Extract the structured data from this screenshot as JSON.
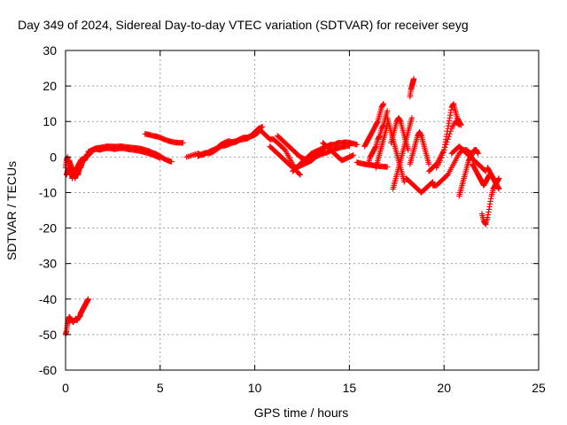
{
  "chart_data": {
    "type": "scatter",
    "title": "Day 349 of 2024, Sidereal Day-to-day VTEC variation (SDTVAR) for receiver seyg",
    "xlabel": "GPS time / hours",
    "ylabel": "SDTVAR / TECUs",
    "xlim": [
      0,
      25
    ],
    "ylim": [
      -60,
      30
    ],
    "xticks": [
      0,
      5,
      10,
      15,
      20,
      25
    ],
    "yticks": [
      -60,
      -50,
      -40,
      -30,
      -20,
      -10,
      0,
      10,
      20,
      30
    ],
    "grid": true,
    "marker": "+",
    "color": "#ff0000",
    "series": [
      {
        "name": "SDTVAR",
        "segments": [
          {
            "x": [
              0.0,
              0.05,
              0.1,
              0.15,
              0.2,
              0.25,
              0.3,
              0.35,
              0.4,
              0.45,
              0.5,
              0.55,
              0.6,
              0.65,
              0.7,
              0.75,
              0.8,
              0.85,
              0.9,
              0.95,
              1.0,
              1.05,
              1.1,
              1.15,
              1.2
            ],
            "y": [
              -50,
              -49,
              -47,
              -46,
              -45,
              -45.5,
              -46,
              -46,
              -46.5,
              -46,
              -46,
              -45.5,
              -46,
              -45.5,
              -45,
              -45,
              -44,
              -43.5,
              -43,
              -42.5,
              -42,
              -41.5,
              -41,
              -40.5,
              -40
            ]
          },
          {
            "x": [
              0.0,
              0.05,
              0.1,
              0.15,
              0.2,
              0.25,
              0.3,
              0.35,
              0.4,
              0.45,
              0.5,
              0.55,
              0.6,
              0.65,
              0.7,
              0.75,
              0.8,
              0.85,
              0.9,
              0.95,
              1.0,
              1.1,
              1.2,
              1.3
            ],
            "y": [
              -3,
              -1,
              0,
              -2,
              -4,
              -5,
              -4,
              -6,
              -5,
              -4,
              -6,
              -5,
              -4,
              -5,
              -4,
              -3,
              -3,
              -2,
              -1,
              -1,
              0,
              0,
              0.5,
              1
            ]
          },
          {
            "x": [
              0.05,
              0.1,
              0.15,
              0.2,
              0.25,
              0.3,
              0.35,
              0.4,
              0.45,
              0.5,
              0.6,
              0.7,
              0.8,
              0.9,
              1.0,
              1.1,
              1.2,
              1.3
            ],
            "y": [
              -5,
              -4,
              -3,
              -1,
              -2,
              -3,
              -4,
              -3,
              -5,
              -4,
              -3,
              -2,
              -1,
              -0.5,
              -1,
              0,
              1,
              1.5
            ]
          },
          {
            "x": [
              1.2,
              1.4,
              1.6,
              1.8,
              2.0,
              2.2,
              2.4,
              2.6,
              2.8,
              3.0,
              3.2,
              3.4,
              3.6,
              3.8,
              4.0,
              4.2,
              4.4,
              4.6,
              4.8,
              5.0,
              5.2,
              5.4,
              5.6
            ],
            "y": [
              1.5,
              2,
              2.5,
              2.6,
              2.8,
              3,
              3,
              2.9,
              3,
              3,
              2.8,
              2.7,
              2.6,
              2.5,
              2.3,
              2,
              1.7,
              1.2,
              0.8,
              0.2,
              -0.5,
              -1,
              -1.3
            ]
          },
          {
            "x": [
              1.4,
              1.6,
              1.8,
              2.0,
              2.2,
              2.4,
              2.6,
              2.8,
              3.0,
              3.2,
              3.4,
              3.6,
              3.8,
              4.0,
              4.2,
              4.4,
              4.6,
              4.8,
              5.0
            ],
            "y": [
              1.8,
              2.2,
              2.0,
              2.3,
              2.5,
              2.4,
              2.2,
              2.4,
              2.5,
              2.3,
              2.1,
              2.0,
              1.8,
              1.6,
              1.3,
              1.0,
              0.6,
              0.2,
              -0.3
            ]
          },
          {
            "x": [
              4.2,
              4.4,
              4.6,
              4.8,
              5.0,
              5.2,
              5.4,
              5.6,
              5.8,
              6.0,
              6.2
            ],
            "y": [
              6.5,
              6.3,
              6.0,
              5.8,
              5.5,
              5.0,
              4.6,
              4.3,
              4.1,
              4.0,
              4.0
            ]
          },
          {
            "x": [
              6.4,
              6.7,
              7.0,
              7.2,
              7.4,
              7.6,
              7.8,
              8.0,
              8.2,
              8.4,
              8.6,
              8.8,
              9.0,
              9.2,
              9.4,
              9.6,
              9.8,
              10.0,
              10.2,
              10.4
            ],
            "y": [
              0,
              0.5,
              1,
              0.5,
              1,
              1.5,
              2,
              2.5,
              3.5,
              4,
              4.5,
              4.2,
              4.5,
              5,
              5.5,
              5.5,
              6,
              7,
              8,
              8.5
            ]
          },
          {
            "x": [
              7.0,
              7.2,
              7.4,
              7.6,
              7.8,
              8.0,
              8.2,
              8.4,
              8.6,
              8.8,
              9.0,
              9.2,
              9.4,
              9.6,
              9.8,
              10.0,
              10.2
            ],
            "y": [
              0.2,
              0.8,
              1.2,
              1.0,
              1.5,
              2.2,
              3.0,
              3.2,
              3.5,
              4.0,
              4.2,
              4.8,
              5.0,
              5.2,
              5.8,
              6.2,
              7.0
            ]
          },
          {
            "x": [
              10.0,
              10.2,
              10.4,
              10.6,
              10.8,
              11.0,
              11.2,
              11.4,
              11.6,
              11.8,
              12.0,
              12.2,
              12.4
            ],
            "y": [
              7,
              8,
              7,
              6,
              5,
              5,
              4,
              3,
              2,
              0,
              -2,
              -4,
              -5
            ]
          },
          {
            "x": [
              10.8,
              11.0,
              11.2,
              11.4,
              11.6,
              11.8,
              12.0,
              12.2,
              12.4,
              12.6,
              12.8,
              13.0
            ],
            "y": [
              3,
              2,
              1,
              0,
              -1,
              -2,
              -3,
              -3,
              -2.5,
              -2,
              -1.5,
              -1
            ]
          },
          {
            "x": [
              11.2,
              11.4,
              11.6,
              11.8,
              12.0,
              12.2,
              12.4,
              12.6,
              12.8,
              13.0,
              13.2,
              13.4,
              13.6
            ],
            "y": [
              6,
              5,
              4,
              3,
              2,
              1,
              0,
              -0.5,
              -1,
              0,
              1,
              1.5,
              2
            ]
          },
          {
            "x": [
              12.0,
              12.2,
              12.4,
              12.6,
              12.8,
              13.0,
              13.2,
              13.4,
              13.6,
              13.8,
              14.0,
              14.2,
              14.4,
              14.6,
              14.8,
              15.0,
              15.2,
              15.4
            ],
            "y": [
              -4,
              -3,
              -2,
              -1,
              0,
              1,
              1.5,
              2,
              2.5,
              3,
              3.5,
              3.5,
              4,
              4,
              4.2,
              4,
              3.8,
              3.5
            ]
          },
          {
            "x": [
              12.4,
              12.6,
              12.8,
              13.0,
              13.2,
              13.4,
              13.6,
              13.8,
              14.0,
              14.2,
              14.4,
              14.6,
              14.8,
              15.0
            ],
            "y": [
              -2,
              -1,
              -1.5,
              -1,
              0,
              0.5,
              1,
              1.2,
              1.8,
              2.2,
              2.5,
              2.8,
              3,
              3.2
            ]
          },
          {
            "x": [
              13.6,
              13.8,
              14.0,
              14.2,
              14.4,
              14.6,
              14.8,
              15.0,
              15.2
            ],
            "y": [
              4,
              3,
              2,
              1,
              0,
              -1,
              -0.5,
              0,
              0.5
            ]
          },
          {
            "x": [
              15.4,
              15.6,
              15.8,
              16.0,
              16.2,
              16.4,
              16.6,
              16.8,
              17.0
            ],
            "y": [
              -1.5,
              -1.8,
              -2,
              -2.2,
              -2.3,
              -2.5,
              -2.6,
              -2.7,
              -2.8
            ]
          },
          {
            "x": [
              15.8,
              15.9,
              16.0,
              16.1,
              16.2,
              16.3,
              16.4,
              16.5,
              16.6,
              16.7,
              16.8
            ],
            "y": [
              3,
              4,
              5,
              6,
              7,
              8,
              9,
              10,
              12,
              14,
              15
            ]
          },
          {
            "x": [
              16.0,
              16.1,
              16.2,
              16.3,
              16.4,
              16.5,
              16.6,
              16.7,
              16.8,
              16.9,
              17.0
            ],
            "y": [
              -2,
              0,
              1,
              2,
              3,
              5,
              6,
              8,
              9,
              11,
              13
            ]
          },
          {
            "x": [
              16.4,
              16.5,
              16.6,
              16.7,
              16.8,
              16.9,
              17.0
            ],
            "y": [
              -3,
              -1,
              1,
              3,
              5,
              7,
              9
            ]
          },
          {
            "x": [
              17.0,
              17.1,
              17.2,
              17.3,
              17.4,
              17.5,
              17.6,
              17.7,
              17.8,
              17.9
            ],
            "y": [
              11,
              9,
              7,
              5,
              3,
              1,
              -1,
              -3,
              -5,
              -7
            ]
          },
          {
            "x": [
              17.2,
              17.3,
              17.4,
              17.5,
              17.6,
              17.7,
              17.8,
              17.9,
              18.0,
              18.1
            ],
            "y": [
              4,
              6,
              8,
              10,
              11,
              10,
              8,
              6,
              4,
              2
            ]
          },
          {
            "x": [
              17.3,
              17.4,
              17.5,
              17.6,
              17.7,
              17.8,
              17.9,
              18.0,
              18.1,
              18.2,
              18.3
            ],
            "y": [
              -9,
              -7,
              -5,
              -3,
              -1,
              1,
              3,
              5,
              7,
              9,
              11
            ]
          },
          {
            "x": [
              18.2,
              18.25,
              18.3,
              18.35,
              18.4
            ],
            "y": [
              17,
              19,
              20,
              21,
              22
            ]
          },
          {
            "x": [
              18.0,
              18.2,
              18.4,
              18.6,
              18.8,
              19.0,
              19.2,
              19.4
            ],
            "y": [
              -6,
              -7,
              -8,
              -9,
              -10,
              -9,
              -8,
              -7
            ]
          },
          {
            "x": [
              18.2,
              18.3,
              18.4,
              18.5,
              18.6,
              18.7,
              18.8,
              18.9,
              19.0,
              19.1,
              19.2
            ],
            "y": [
              -2,
              0,
              2,
              4,
              6,
              7,
              6,
              4,
              2,
              0,
              -2
            ]
          },
          {
            "x": [
              19.2,
              19.4,
              19.6,
              19.8,
              20.0,
              20.2,
              20.4,
              20.6,
              20.8
            ],
            "y": [
              -4,
              -3,
              -2,
              0,
              2,
              5,
              8,
              10,
              9
            ]
          },
          {
            "x": [
              19.6,
              19.8,
              20.0,
              20.1,
              20.2,
              20.3,
              20.4,
              20.5,
              20.6,
              20.7,
              20.8,
              20.9
            ],
            "y": [
              -3,
              -1,
              2,
              5,
              8,
              11,
              14,
              15,
              13,
              11,
              10,
              9
            ]
          },
          {
            "x": [
              19.4,
              19.6,
              19.8,
              20.0,
              20.2,
              20.4,
              20.6,
              20.8,
              21.0,
              21.2,
              21.4
            ],
            "y": [
              -8,
              -8,
              -7,
              -6,
              -5,
              -3,
              -1,
              1,
              2,
              2,
              1
            ]
          },
          {
            "x": [
              20.4,
              20.6,
              20.8,
              21.0,
              21.2,
              21.4,
              21.6,
              21.8,
              22.0,
              22.2
            ],
            "y": [
              1,
              2,
              3,
              2,
              1,
              0,
              -1,
              -2,
              -3,
              -4
            ]
          },
          {
            "x": [
              20.8,
              20.9,
              21.0,
              21.1,
              21.2,
              21.3,
              21.4,
              21.5,
              21.6,
              21.7,
              21.8
            ],
            "y": [
              -11,
              -9,
              -7,
              -5,
              -3,
              -1,
              0,
              1,
              2,
              2,
              1
            ]
          },
          {
            "x": [
              21.5,
              21.6,
              21.7,
              21.8,
              21.9,
              22.0,
              22.1,
              22.2,
              22.3,
              22.4
            ],
            "y": [
              -2,
              -3,
              -4,
              -5,
              -6,
              -7,
              -8,
              -7,
              -6,
              -5
            ]
          },
          {
            "x": [
              22.0,
              22.1,
              22.2,
              22.3,
              22.4,
              22.5,
              22.6,
              22.7,
              22.8,
              22.9
            ],
            "y": [
              -16,
              -18,
              -19,
              -17,
              -14,
              -11,
              -9,
              -8,
              -7,
              -6
            ]
          },
          {
            "x": [
              22.3,
              22.4,
              22.5,
              22.6,
              22.7,
              22.8,
              22.9
            ],
            "y": [
              -3,
              -4,
              -5,
              -6,
              -7,
              -8,
              -9
            ]
          }
        ]
      }
    ]
  }
}
